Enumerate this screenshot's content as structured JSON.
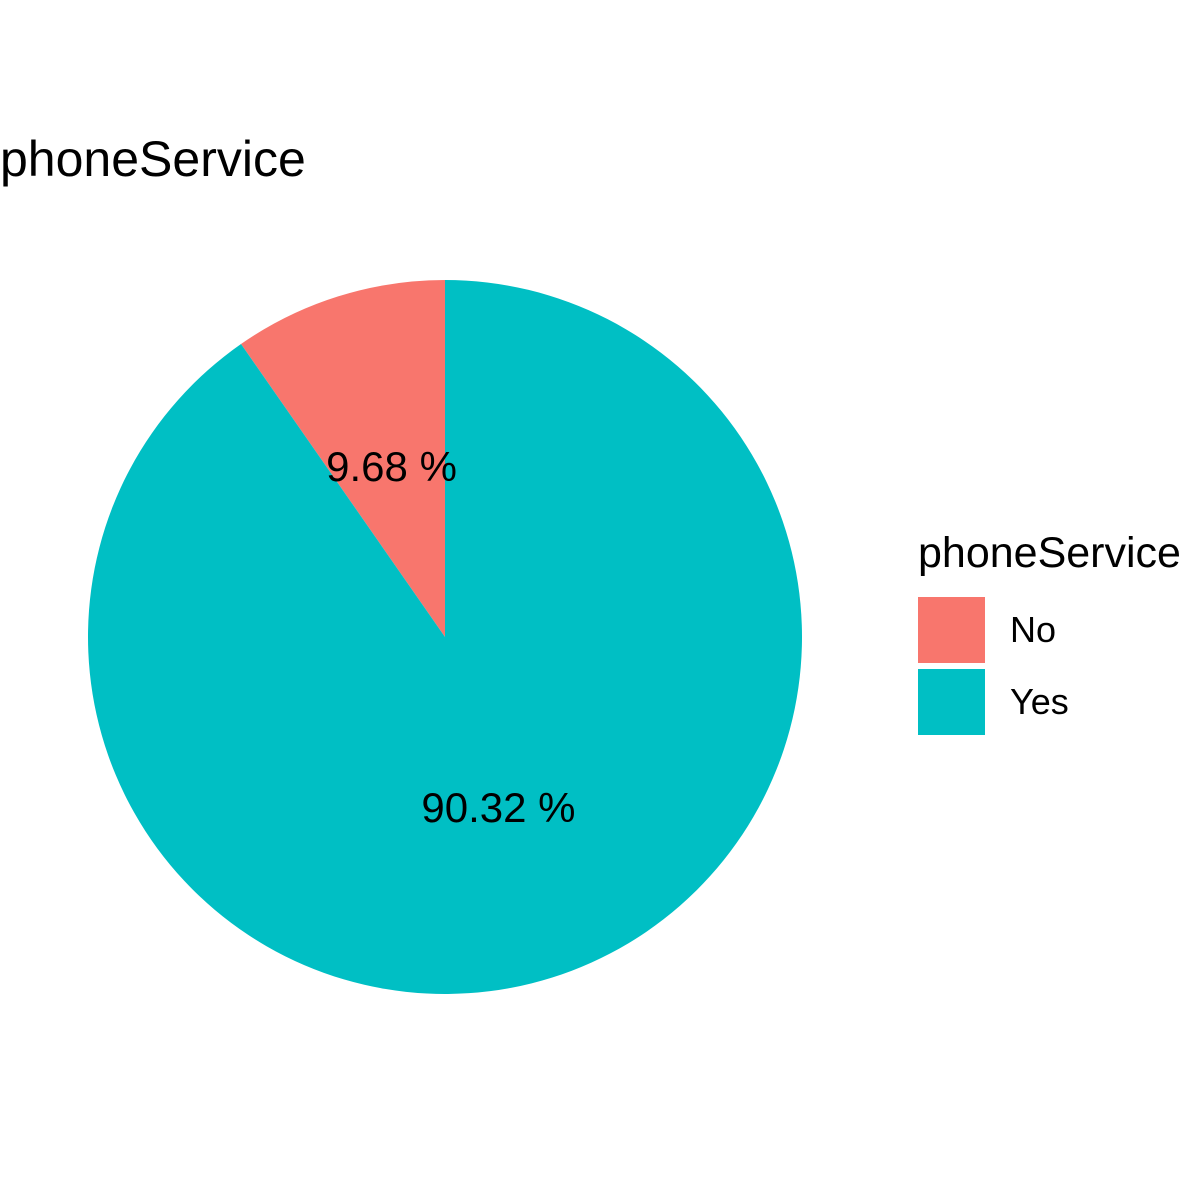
{
  "chart_data": {
    "type": "pie",
    "title": "phoneService",
    "legend_title": "phoneService",
    "legend_position": "right",
    "categories": [
      "No",
      "Yes"
    ],
    "values": [
      9.68,
      90.32
    ],
    "labels": [
      "9.68 %",
      "90.32 %"
    ],
    "colors": [
      "#F8766D",
      "#00BFC4"
    ],
    "start_angle": "12 o'clock",
    "direction": "counter-clockwise"
  }
}
